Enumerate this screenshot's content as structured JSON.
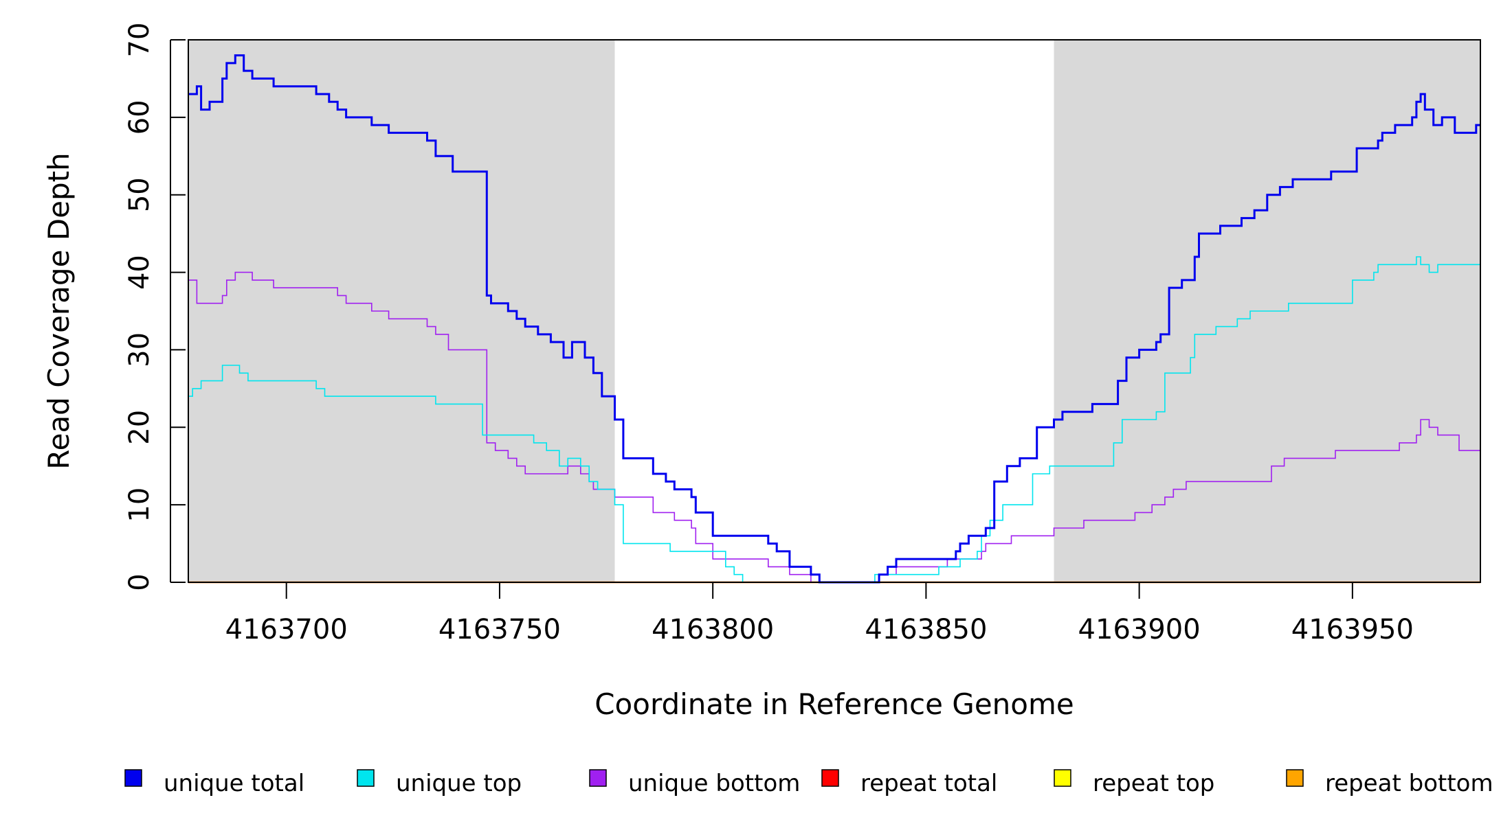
{
  "chart_data": {
    "type": "line",
    "title": "",
    "xlabel": "Coordinate in Reference Genome",
    "ylabel": "Read Coverage Depth",
    "xlim": [
      4163677,
      4163980
    ],
    "ylim": [
      0,
      70
    ],
    "x_ticks": [
      4163700,
      4163750,
      4163800,
      4163850,
      4163900,
      4163950
    ],
    "y_ticks": [
      0,
      10,
      20,
      30,
      40,
      50,
      60,
      70
    ],
    "shaded_regions": [
      {
        "from": 4163677,
        "to": 4163777,
        "color": "#d9d9d9"
      },
      {
        "from": 4163880,
        "to": 4163980,
        "color": "#d9d9d9"
      }
    ],
    "legend_position": "bottom",
    "series": [
      {
        "name": "unique total",
        "color": "#0000ee",
        "points": [
          [
            4163677,
            63
          ],
          [
            4163679,
            64
          ],
          [
            4163680,
            61
          ],
          [
            4163682,
            62
          ],
          [
            4163685,
            65
          ],
          [
            4163686,
            67
          ],
          [
            4163688,
            68
          ],
          [
            4163690,
            66
          ],
          [
            4163692,
            65
          ],
          [
            4163697,
            64
          ],
          [
            4163707,
            63
          ],
          [
            4163710,
            62
          ],
          [
            4163712,
            61
          ],
          [
            4163714,
            60
          ],
          [
            4163720,
            59
          ],
          [
            4163724,
            58
          ],
          [
            4163733,
            57
          ],
          [
            4163735,
            55
          ],
          [
            4163739,
            53
          ],
          [
            4163747,
            37
          ],
          [
            4163748,
            36
          ],
          [
            4163752,
            35
          ],
          [
            4163754,
            34
          ],
          [
            4163756,
            33
          ],
          [
            4163759,
            32
          ],
          [
            4163762,
            31
          ],
          [
            4163765,
            29
          ],
          [
            4163767,
            31
          ],
          [
            4163770,
            29
          ],
          [
            4163772,
            27
          ],
          [
            4163774,
            24
          ],
          [
            4163777,
            21
          ],
          [
            4163779,
            16
          ],
          [
            4163786,
            14
          ],
          [
            4163789,
            13
          ],
          [
            4163791,
            12
          ],
          [
            4163795,
            11
          ],
          [
            4163796,
            9
          ],
          [
            4163800,
            6
          ],
          [
            4163813,
            5
          ],
          [
            4163815,
            4
          ],
          [
            4163818,
            2
          ],
          [
            4163823,
            1
          ],
          [
            4163825,
            0
          ],
          [
            4163839,
            1
          ],
          [
            4163841,
            2
          ],
          [
            4163843,
            3
          ],
          [
            4163857,
            4
          ],
          [
            4163858,
            5
          ],
          [
            4163860,
            6
          ],
          [
            4163864,
            7
          ],
          [
            4163866,
            13
          ],
          [
            4163869,
            15
          ],
          [
            4163872,
            16
          ],
          [
            4163876,
            20
          ],
          [
            4163880,
            21
          ],
          [
            4163882,
            22
          ],
          [
            4163889,
            23
          ],
          [
            4163895,
            26
          ],
          [
            4163897,
            29
          ],
          [
            4163900,
            30
          ],
          [
            4163904,
            31
          ],
          [
            4163905,
            32
          ],
          [
            4163907,
            38
          ],
          [
            4163910,
            39
          ],
          [
            4163913,
            42
          ],
          [
            4163914,
            45
          ],
          [
            4163919,
            46
          ],
          [
            4163924,
            47
          ],
          [
            4163927,
            48
          ],
          [
            4163930,
            50
          ],
          [
            4163933,
            51
          ],
          [
            4163936,
            52
          ],
          [
            4163945,
            53
          ],
          [
            4163951,
            56
          ],
          [
            4163956,
            57
          ],
          [
            4163957,
            58
          ],
          [
            4163960,
            59
          ],
          [
            4163964,
            60
          ],
          [
            4163965,
            62
          ],
          [
            4163966,
            63
          ],
          [
            4163967,
            61
          ],
          [
            4163969,
            59
          ],
          [
            4163971,
            60
          ],
          [
            4163974,
            58
          ],
          [
            4163979,
            59
          ],
          [
            4163980,
            59
          ]
        ]
      },
      {
        "name": "unique top",
        "color": "#00e5ee",
        "points": [
          [
            4163677,
            24
          ],
          [
            4163678,
            25
          ],
          [
            4163680,
            26
          ],
          [
            4163685,
            28
          ],
          [
            4163689,
            27
          ],
          [
            4163691,
            26
          ],
          [
            4163707,
            25
          ],
          [
            4163709,
            24
          ],
          [
            4163735,
            23
          ],
          [
            4163746,
            19
          ],
          [
            4163758,
            18
          ],
          [
            4163761,
            17
          ],
          [
            4163764,
            15
          ],
          [
            4163766,
            16
          ],
          [
            4163769,
            15
          ],
          [
            4163771,
            13
          ],
          [
            4163773,
            12
          ],
          [
            4163777,
            10
          ],
          [
            4163779,
            5
          ],
          [
            4163790,
            4
          ],
          [
            4163803,
            2
          ],
          [
            4163805,
            1
          ],
          [
            4163807,
            0
          ],
          [
            4163838,
            1
          ],
          [
            4163853,
            2
          ],
          [
            4163858,
            3
          ],
          [
            4163862,
            4
          ],
          [
            4163863,
            6
          ],
          [
            4163865,
            8
          ],
          [
            4163868,
            10
          ],
          [
            4163875,
            14
          ],
          [
            4163879,
            15
          ],
          [
            4163894,
            18
          ],
          [
            4163896,
            21
          ],
          [
            4163904,
            22
          ],
          [
            4163906,
            27
          ],
          [
            4163912,
            29
          ],
          [
            4163913,
            32
          ],
          [
            4163918,
            33
          ],
          [
            4163923,
            34
          ],
          [
            4163926,
            35
          ],
          [
            4163935,
            36
          ],
          [
            4163950,
            39
          ],
          [
            4163955,
            40
          ],
          [
            4163956,
            41
          ],
          [
            4163965,
            42
          ],
          [
            4163966,
            41
          ],
          [
            4163968,
            40
          ],
          [
            4163970,
            41
          ],
          [
            4163980,
            41
          ]
        ]
      },
      {
        "name": "unique bottom",
        "color": "#a020f0",
        "points": [
          [
            4163677,
            39
          ],
          [
            4163679,
            36
          ],
          [
            4163685,
            37
          ],
          [
            4163686,
            39
          ],
          [
            4163688,
            40
          ],
          [
            4163692,
            39
          ],
          [
            4163697,
            38
          ],
          [
            4163712,
            37
          ],
          [
            4163714,
            36
          ],
          [
            4163720,
            35
          ],
          [
            4163724,
            34
          ],
          [
            4163733,
            33
          ],
          [
            4163735,
            32
          ],
          [
            4163738,
            30
          ],
          [
            4163747,
            18
          ],
          [
            4163749,
            17
          ],
          [
            4163752,
            16
          ],
          [
            4163754,
            15
          ],
          [
            4163756,
            14
          ],
          [
            4163766,
            15
          ],
          [
            4163769,
            14
          ],
          [
            4163771,
            13
          ],
          [
            4163772,
            12
          ],
          [
            4163777,
            11
          ],
          [
            4163786,
            9
          ],
          [
            4163791,
            8
          ],
          [
            4163795,
            7
          ],
          [
            4163796,
            5
          ],
          [
            4163800,
            3
          ],
          [
            4163813,
            2
          ],
          [
            4163818,
            1
          ],
          [
            4163823,
            0
          ],
          [
            4163839,
            1
          ],
          [
            4163843,
            2
          ],
          [
            4163855,
            3
          ],
          [
            4163863,
            4
          ],
          [
            4163864,
            5
          ],
          [
            4163870,
            6
          ],
          [
            4163880,
            7
          ],
          [
            4163887,
            8
          ],
          [
            4163899,
            9
          ],
          [
            4163903,
            10
          ],
          [
            4163906,
            11
          ],
          [
            4163908,
            12
          ],
          [
            4163911,
            13
          ],
          [
            4163931,
            15
          ],
          [
            4163934,
            16
          ],
          [
            4163946,
            17
          ],
          [
            4163961,
            18
          ],
          [
            4163965,
            19
          ],
          [
            4163966,
            21
          ],
          [
            4163968,
            20
          ],
          [
            4163970,
            19
          ],
          [
            4163975,
            17
          ],
          [
            4163980,
            18
          ]
        ]
      },
      {
        "name": "repeat total",
        "color": "#ff0000",
        "points": [
          [
            4163677,
            0
          ],
          [
            4163980,
            0
          ]
        ]
      },
      {
        "name": "repeat top",
        "color": "#ffff00",
        "points": [
          [
            4163677,
            0
          ],
          [
            4163980,
            0
          ]
        ]
      },
      {
        "name": "repeat bottom",
        "color": "#ffa500",
        "points": [
          [
            4163677,
            0
          ],
          [
            4163980,
            0
          ]
        ]
      }
    ]
  }
}
